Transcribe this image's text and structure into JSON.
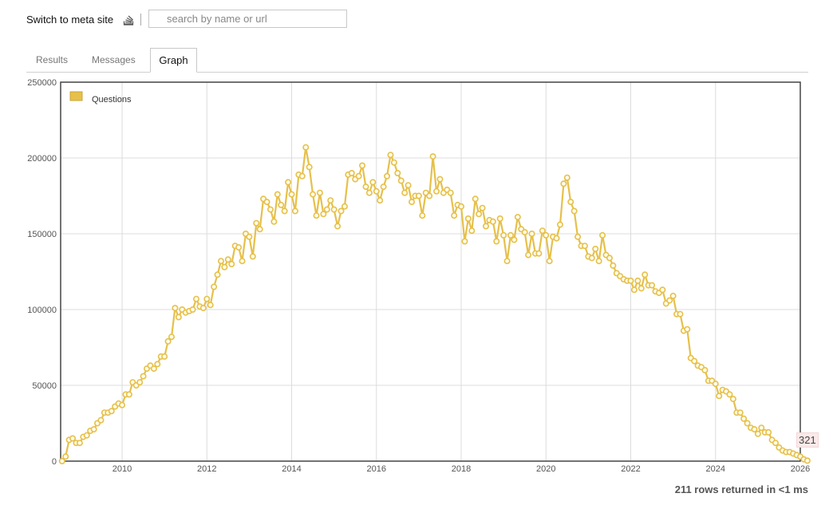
{
  "header": {
    "meta_link": "Switch to meta site",
    "search_placeholder": "search by name or url"
  },
  "tabs": [
    {
      "label": "Results",
      "active": false
    },
    {
      "label": "Messages",
      "active": false
    },
    {
      "label": "Graph",
      "active": true
    }
  ],
  "footer": {
    "status": "211 rows returned in <1 ms"
  },
  "tooltip": {
    "value": "321"
  },
  "colors": {
    "series": "#e6c04a",
    "series_fill": "#faf3d6",
    "tooltip_bg": "#fbe9e9"
  },
  "chart_data": {
    "type": "line",
    "title": "",
    "xlabel": "",
    "ylabel": "",
    "xlim": [
      2008.55,
      2026.0
    ],
    "ylim": [
      0,
      250000
    ],
    "x_ticks": [
      "2010",
      "2012",
      "2014",
      "2016",
      "2018",
      "2020",
      "2022",
      "2024",
      "2026"
    ],
    "y_ticks": [
      "0",
      "50000",
      "100000",
      "150000",
      "200000",
      "250000"
    ],
    "grid": true,
    "legend": "top-left",
    "series": [
      {
        "name": "Questions",
        "x_start": "2008-08",
        "interval": "month",
        "values": [
          0,
          3000,
          14000,
          15000,
          12000,
          12000,
          16000,
          17000,
          20000,
          21000,
          25000,
          27000,
          32000,
          32000,
          33000,
          36000,
          38000,
          37000,
          44000,
          44000,
          52000,
          50000,
          52000,
          56000,
          61000,
          63000,
          61000,
          64000,
          69000,
          69000,
          79000,
          82000,
          101000,
          95000,
          100000,
          98000,
          99000,
          100000,
          107000,
          102000,
          101000,
          107000,
          103000,
          115000,
          123000,
          132000,
          128000,
          133000,
          130000,
          142000,
          141000,
          132000,
          150000,
          148000,
          135000,
          157000,
          153000,
          173000,
          171000,
          166000,
          158000,
          176000,
          169000,
          165000,
          184000,
          176000,
          165000,
          189000,
          188000,
          207000,
          194000,
          176000,
          162000,
          177000,
          163000,
          166000,
          172000,
          166000,
          155000,
          165000,
          168000,
          189000,
          190000,
          186000,
          188000,
          195000,
          181000,
          177000,
          184000,
          178000,
          172000,
          181000,
          188000,
          202000,
          197000,
          190000,
          185000,
          177000,
          182000,
          171000,
          175000,
          175000,
          162000,
          177000,
          175000,
          201000,
          178000,
          186000,
          177000,
          179000,
          177000,
          162000,
          169000,
          168000,
          145000,
          160000,
          152000,
          173000,
          163000,
          167000,
          155000,
          159000,
          158000,
          145000,
          160000,
          149000,
          132000,
          149000,
          146000,
          161000,
          153000,
          151000,
          136000,
          150000,
          137000,
          137000,
          152000,
          149000,
          132000,
          148000,
          147000,
          156000,
          183000,
          187000,
          171000,
          165000,
          148000,
          142000,
          142000,
          135000,
          134000,
          140000,
          132000,
          149000,
          136000,
          134000,
          129000,
          124000,
          122000,
          120000,
          119000,
          119000,
          113000,
          119000,
          114000,
          123000,
          116000,
          116000,
          112000,
          111000,
          113000,
          104000,
          106000,
          109000,
          97000,
          97000,
          86000,
          87000,
          68000,
          66000,
          63000,
          62000,
          60000,
          53000,
          53000,
          51000,
          43000,
          47000,
          46000,
          44000,
          41000,
          32000,
          32000,
          28000,
          25000,
          22000,
          21000,
          18000,
          22000,
          19000,
          19000,
          14000,
          12000,
          9000,
          7000,
          6000,
          6000,
          5000,
          4000,
          3000,
          1200,
          321
        ]
      }
    ]
  }
}
